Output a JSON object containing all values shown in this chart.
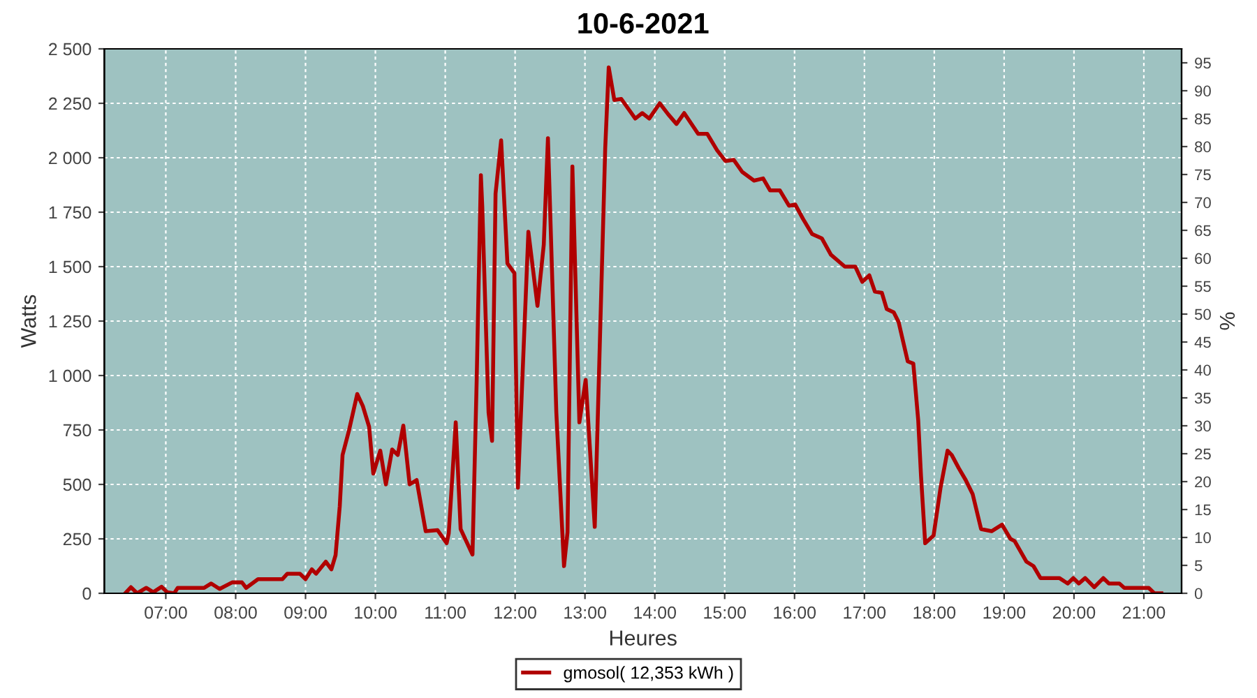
{
  "chart_data": {
    "type": "line",
    "title": "10-6-2021",
    "xlabel": "Heures",
    "ylabel": "Watts",
    "y2label": "%",
    "xlim": [
      6.12,
      21.54
    ],
    "xticks": [
      {
        "value": 7,
        "label": "07:00"
      },
      {
        "value": 8,
        "label": "08:00"
      },
      {
        "value": 9,
        "label": "09:00"
      },
      {
        "value": 10,
        "label": "10:00"
      },
      {
        "value": 11,
        "label": "11:00"
      },
      {
        "value": 12,
        "label": "12:00"
      },
      {
        "value": 13,
        "label": "13:00"
      },
      {
        "value": 14,
        "label": "14:00"
      },
      {
        "value": 15,
        "label": "15:00"
      },
      {
        "value": 16,
        "label": "16:00"
      },
      {
        "value": 17,
        "label": "17:00"
      },
      {
        "value": 18,
        "label": "18:00"
      },
      {
        "value": 19,
        "label": "19:00"
      },
      {
        "value": 20,
        "label": "20:00"
      },
      {
        "value": 21,
        "label": "21:00"
      }
    ],
    "ylim": [
      0,
      2500
    ],
    "yticks": [
      0,
      250,
      500,
      750,
      {
        "value": 1000,
        "label": "1 000"
      },
      {
        "value": 1250,
        "label": "1 250"
      },
      {
        "value": 1500,
        "label": "1 500"
      },
      {
        "value": 1750,
        "label": "1 750"
      },
      {
        "value": 2000,
        "label": "2 000"
      },
      {
        "value": 2250,
        "label": "2 250"
      },
      {
        "value": 2500,
        "label": "2 500"
      }
    ],
    "y2lim": [
      0,
      97.5
    ],
    "y2ticks": [
      0,
      5,
      10,
      15,
      20,
      25,
      30,
      35,
      40,
      45,
      50,
      55,
      60,
      65,
      70,
      75,
      80,
      85,
      90,
      95
    ],
    "grid": true,
    "legend": "bottom",
    "marker": "none",
    "line_style": "solid",
    "series": [
      {
        "name": "gmosol( 12,353 kWh )",
        "color": "#b00000",
        "x": [
          6.42,
          6.5,
          6.59,
          6.72,
          6.82,
          6.94,
          7.02,
          7.12,
          7.17,
          7.55,
          7.65,
          7.77,
          7.95,
          8.09,
          8.15,
          8.32,
          8.67,
          8.74,
          8.92,
          9.0,
          9.09,
          9.15,
          9.29,
          9.37,
          9.43,
          9.49,
          9.53,
          9.62,
          9.74,
          9.82,
          9.91,
          9.97,
          10.07,
          10.15,
          10.24,
          10.32,
          10.4,
          10.49,
          10.59,
          10.72,
          10.89,
          11.02,
          11.05,
          11.15,
          11.22,
          11.39,
          11.45,
          11.51,
          11.53,
          11.62,
          11.67,
          11.72,
          11.8,
          11.89,
          11.99,
          12.04,
          12.19,
          12.32,
          12.41,
          12.47,
          12.59,
          12.7,
          12.75,
          12.82,
          12.92,
          13.01,
          13.14,
          13.29,
          13.34,
          13.42,
          13.52,
          13.72,
          13.82,
          13.92,
          14.07,
          14.19,
          14.31,
          14.42,
          14.62,
          14.75,
          14.89,
          15.01,
          15.13,
          15.25,
          15.42,
          15.55,
          15.65,
          15.79,
          15.92,
          16.01,
          16.12,
          16.25,
          16.39,
          16.52,
          16.72,
          16.87,
          16.97,
          17.07,
          17.15,
          17.25,
          17.32,
          17.42,
          17.49,
          17.62,
          17.7,
          17.77,
          17.81,
          17.87,
          17.99,
          18.09,
          18.19,
          18.25,
          18.35,
          18.45,
          18.55,
          18.67,
          18.82,
          18.97,
          19.09,
          19.15,
          19.32,
          19.42,
          19.52,
          19.79,
          19.91,
          19.99,
          20.07,
          20.16,
          20.29,
          20.42,
          20.5,
          20.65,
          20.72,
          21.07,
          21.15,
          21.25
        ],
        "values": [
          0,
          28,
          0,
          25,
          5,
          30,
          5,
          0,
          25,
          25,
          45,
          20,
          50,
          50,
          25,
          65,
          65,
          90,
          90,
          65,
          110,
          90,
          145,
          110,
          175,
          400,
          635,
          745,
          915,
          860,
          765,
          550,
          655,
          500,
          660,
          635,
          770,
          500,
          520,
          285,
          290,
          230,
          275,
          785,
          295,
          178,
          980,
          1920,
          1775,
          830,
          700,
          1835,
          2080,
          1515,
          1470,
          485,
          1660,
          1320,
          1600,
          2090,
          830,
          125,
          280,
          1960,
          785,
          980,
          305,
          2045,
          2415,
          2265,
          2270,
          2180,
          2205,
          2180,
          2250,
          2200,
          2155,
          2205,
          2110,
          2110,
          2035,
          1985,
          1990,
          1935,
          1895,
          1905,
          1850,
          1850,
          1780,
          1785,
          1720,
          1650,
          1630,
          1555,
          1500,
          1500,
          1430,
          1460,
          1385,
          1380,
          1305,
          1290,
          1245,
          1065,
          1055,
          795,
          540,
          230,
          265,
          485,
          655,
          635,
          575,
          520,
          455,
          295,
          285,
          315,
          250,
          240,
          145,
          125,
          70,
          70,
          45,
          70,
          45,
          70,
          28,
          70,
          45,
          45,
          25,
          25,
          0,
          0
        ]
      }
    ]
  }
}
